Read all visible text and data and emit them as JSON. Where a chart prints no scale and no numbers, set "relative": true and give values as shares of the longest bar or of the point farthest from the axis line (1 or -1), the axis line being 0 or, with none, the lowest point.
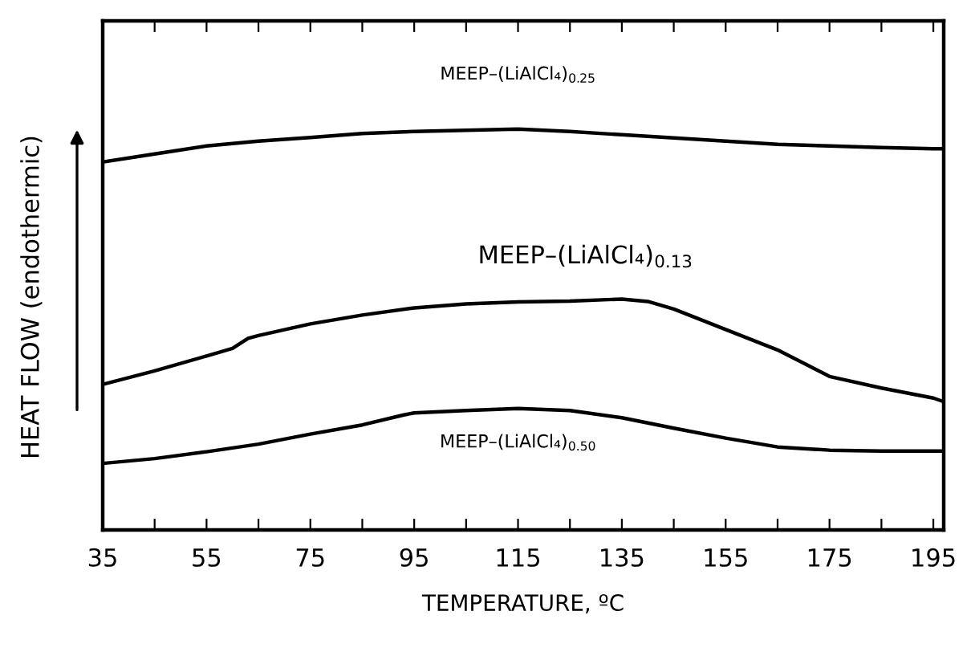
{
  "chart_data": {
    "type": "line",
    "xlabel": "TEMPERATURE, ºC",
    "ylabel": "HEAT FLOW (endothermic)",
    "relative": true,
    "xlim": [
      35,
      197
    ],
    "xticks": [
      35,
      {
        "value": 45,
        "label": null
      },
      55,
      {
        "value": 65,
        "label": null
      },
      75,
      {
        "value": 85,
        "label": null
      },
      95,
      {
        "value": 105,
        "label": null
      },
      115,
      {
        "value": 125,
        "label": null
      },
      135,
      {
        "value": 145,
        "label": null
      },
      155,
      {
        "value": 165,
        "label": null
      },
      175,
      {
        "value": 185,
        "label": null
      },
      195
    ],
    "grid": false,
    "legend": false,
    "marker": "none",
    "line_style": "solid",
    "series": [
      {
        "name": "MEEP–(LiAlCl₄)$_{0.25}$",
        "color": "#000000",
        "x": [
          35,
          45,
          55,
          65,
          75,
          85,
          95,
          105,
          115,
          125,
          135,
          145,
          155,
          165,
          175,
          185,
          195,
          197
        ],
        "values": [
          0.918,
          0.938,
          0.958,
          0.97,
          0.979,
          0.989,
          0.994,
          0.997,
          1.0,
          0.994,
          0.986,
          0.978,
          0.97,
          0.962,
          0.958,
          0.954,
          0.951,
          0.951
        ]
      },
      {
        "name": "MEEP–(LiAlCl₄)$_{0.13}$",
        "color": "#000000",
        "x": [
          35,
          45,
          55,
          60,
          63,
          65,
          75,
          85,
          95,
          105,
          115,
          125,
          135,
          140,
          145,
          155,
          165,
          175,
          185,
          195,
          197
        ],
        "values": [
          0.363,
          0.397,
          0.434,
          0.453,
          0.478,
          0.485,
          0.514,
          0.536,
          0.554,
          0.564,
          0.569,
          0.571,
          0.576,
          0.57,
          0.551,
          0.5,
          0.449,
          0.383,
          0.354,
          0.329,
          0.32
        ]
      },
      {
        "name": "MEEP–(LiAlCl₄)$_{0.50}$",
        "color": "#000000",
        "x": [
          35,
          45,
          55,
          65,
          75,
          85,
          93,
          95,
          105,
          115,
          125,
          135,
          145,
          155,
          165,
          175,
          185,
          197
        ],
        "values": [
          0.166,
          0.178,
          0.195,
          0.214,
          0.239,
          0.262,
          0.287,
          0.292,
          0.298,
          0.303,
          0.298,
          0.28,
          0.254,
          0.229,
          0.207,
          0.199,
          0.197,
          0.197
        ]
      }
    ]
  }
}
